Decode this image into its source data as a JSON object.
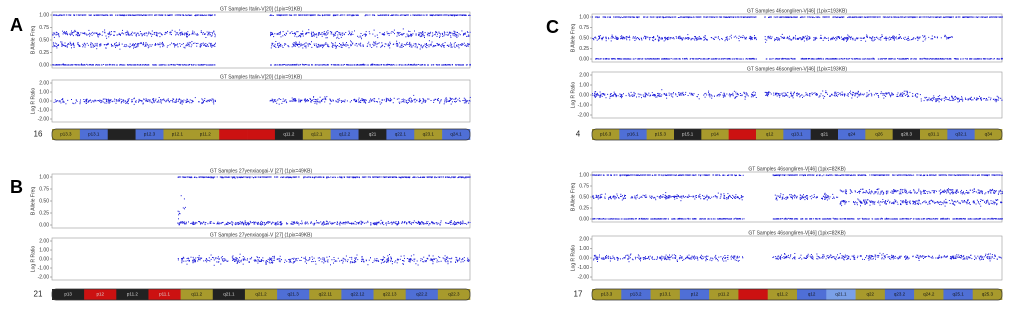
{
  "panels": [
    {
      "label": "A",
      "chromosome": "16",
      "plots": [
        {
          "title": "GT Samples Italin-V[20] (1pix=91KB)",
          "ylabel": "B Allele Freq",
          "ylim": [
            0,
            1
          ],
          "yticks": [
            {
              "value": 1,
              "label": "1.00"
            },
            {
              "value": 0.75,
              "label": "0.75"
            },
            {
              "value": 0.5,
              "label": "0.50"
            },
            {
              "value": 0.25,
              "label": "0.25"
            },
            {
              "value": 0,
              "label": "0.00"
            }
          ],
          "segments": [
            {
              "x": [
                0,
                0.39
              ],
              "y": 1,
              "sd": 0.006
            },
            {
              "x": [
                0,
                0.39
              ],
              "y": 0,
              "sd": 0.006
            },
            {
              "x": [
                0,
                0.39
              ],
              "y": 0.62,
              "sd": 0.03
            },
            {
              "x": [
                0,
                0.39
              ],
              "y": 0.4,
              "sd": 0.03
            },
            {
              "x": [
                0.52,
                1
              ],
              "y": 1,
              "sd": 0.006
            },
            {
              "x": [
                0.52,
                1
              ],
              "y": 0,
              "sd": 0.006
            },
            {
              "x": [
                0.52,
                1
              ],
              "y": 0.62,
              "sd": 0.03
            },
            {
              "x": [
                0.52,
                1
              ],
              "y": 0.4,
              "sd": 0.03
            }
          ]
        },
        {
          "title": "GT Samples Italin-V[20] (1pix=91KB)",
          "ylabel": "Log R Ratio",
          "ylim": [
            -2,
            2
          ],
          "yticks": [
            {
              "value": 2,
              "label": "2.00"
            },
            {
              "value": 1,
              "label": "1.00"
            },
            {
              "value": 0,
              "label": "0.00"
            },
            {
              "value": -1,
              "label": "-1.00"
            },
            {
              "value": -2,
              "label": "-2.00"
            }
          ],
          "segments": [
            {
              "x": [
                0,
                0.39
              ],
              "y": 0,
              "sd": 0.15
            },
            {
              "x": [
                0.52,
                1
              ],
              "y": 0.05,
              "sd": 0.15
            }
          ]
        }
      ],
      "bands": [
        {
          "label": "p13.3",
          "color": "#a89a2c"
        },
        {
          "label": "p13.1",
          "color": "#4f6fd6"
        },
        {
          "label": null,
          "color": "#222222"
        },
        {
          "label": "p12.3",
          "color": "#4f6fd6"
        },
        {
          "label": "p12.1",
          "color": "#a89a2c"
        },
        {
          "label": "p11.2",
          "color": "#a89a2c"
        },
        {
          "label": null,
          "color": "#cc1111"
        },
        {
          "label": null,
          "color": "#cc1111"
        },
        {
          "label": "q11.2",
          "color": "#222222"
        },
        {
          "label": "q12.1",
          "color": "#a89a2c"
        },
        {
          "label": "q12.2",
          "color": "#4f6fd6"
        },
        {
          "label": "q21",
          "color": "#222222"
        },
        {
          "label": "q22.1",
          "color": "#4f6fd6"
        },
        {
          "label": "q23.1",
          "color": "#a89a2c"
        },
        {
          "label": "q24.1",
          "color": "#4f6fd6"
        }
      ]
    },
    {
      "label": "B",
      "chromosome": "21",
      "plots": [
        {
          "title": "GT Samples 27yenxiaogai-V [27] (1pix=49KB)",
          "ylabel": "B Allele Freq",
          "ylim": [
            0,
            1
          ],
          "yticks": [
            {
              "value": 1,
              "label": "1.00"
            },
            {
              "value": 0.75,
              "label": "0.75"
            },
            {
              "value": 0.5,
              "label": "0.50"
            },
            {
              "value": 0.25,
              "label": "0.25"
            },
            {
              "value": 0,
              "label": "0.00"
            }
          ],
          "segments": [
            {
              "x": [
                0.3,
                1
              ],
              "y": 1,
              "sd": 0.008
            },
            {
              "x": [
                0.3,
                1
              ],
              "y": 0.04,
              "sd": 0.02
            },
            {
              "x": [
                0.3,
                0.32
              ],
              "y": 0.3,
              "sd": 0.12
            }
          ]
        },
        {
          "title": "GT Samples 27yenxiaogai-V [27] (1pix=49KB)",
          "ylabel": "Log R Ratio",
          "ylim": [
            -2,
            2
          ],
          "yticks": [
            {
              "value": 2,
              "label": "2.00"
            },
            {
              "value": 1,
              "label": "1.00"
            },
            {
              "value": 0,
              "label": "0.00"
            },
            {
              "value": -1,
              "label": "-1.00"
            },
            {
              "value": -2,
              "label": "-2.00"
            }
          ],
          "segments": [
            {
              "x": [
                0.3,
                1
              ],
              "y": -0.1,
              "sd": 0.2
            }
          ]
        }
      ],
      "bands": [
        {
          "label": "p13",
          "color": "#222222"
        },
        {
          "label": "p12",
          "color": "#cc1111"
        },
        {
          "label": "p11.2",
          "color": "#222222"
        },
        {
          "label": "p11.1",
          "color": "#cc1111"
        },
        {
          "label": "q11.2",
          "color": "#a89a2c"
        },
        {
          "label": "q21.1",
          "color": "#222222"
        },
        {
          "label": "q21.2",
          "color": "#a89a2c"
        },
        {
          "label": "q21.3",
          "color": "#4f6fd6"
        },
        {
          "label": "q22.11",
          "color": "#a89a2c"
        },
        {
          "label": "q22.12",
          "color": "#4f6fd6"
        },
        {
          "label": "q22.13",
          "color": "#a89a2c"
        },
        {
          "label": "q22.2",
          "color": "#4f6fd6"
        },
        {
          "label": "q22.3",
          "color": "#a89a2c"
        }
      ]
    },
    {
      "label": "C",
      "chromosome": "4",
      "plots": [
        {
          "title": "GT Samples 46songliren-V[46] (1pix=193KB)",
          "ylabel": "B Allele Freq",
          "ylim": [
            0,
            1
          ],
          "yticks": [
            {
              "value": 1,
              "label": "1.00"
            },
            {
              "value": 0.75,
              "label": "0.75"
            },
            {
              "value": 0.5,
              "label": "0.50"
            },
            {
              "value": 0.25,
              "label": "0.25"
            },
            {
              "value": 0,
              "label": "0.00"
            }
          ],
          "segments": [
            {
              "x": [
                0,
                0.4
              ],
              "y": 1,
              "sd": 0.006
            },
            {
              "x": [
                0,
                0.4
              ],
              "y": 0,
              "sd": 0.006
            },
            {
              "x": [
                0,
                0.4
              ],
              "y": 0.5,
              "sd": 0.03
            },
            {
              "x": [
                0.42,
                0.88
              ],
              "y": 1,
              "sd": 0.006
            },
            {
              "x": [
                0.42,
                0.88
              ],
              "y": 0,
              "sd": 0.006
            },
            {
              "x": [
                0.42,
                0.88
              ],
              "y": 0.5,
              "sd": 0.03
            },
            {
              "x": [
                0.88,
                1
              ],
              "y": 1,
              "sd": 0.006
            },
            {
              "x": [
                0.88,
                1
              ],
              "y": 0,
              "sd": 0.006
            }
          ]
        },
        {
          "title": "GT Samples 46songliren-V[46] (1pix=193KB)",
          "ylabel": "Log R Ratio",
          "ylim": [
            -2,
            2
          ],
          "yticks": [
            {
              "value": 2,
              "label": "2.00"
            },
            {
              "value": 1,
              "label": "1.00"
            },
            {
              "value": 0,
              "label": "0.00"
            },
            {
              "value": -1,
              "label": "-1.00"
            },
            {
              "value": -2,
              "label": "-2.00"
            }
          ],
          "segments": [
            {
              "x": [
                0,
                0.4
              ],
              "y": 0,
              "sd": 0.15
            },
            {
              "x": [
                0.42,
                0.8
              ],
              "y": 0.05,
              "sd": 0.15
            },
            {
              "x": [
                0.8,
                1
              ],
              "y": -0.4,
              "sd": 0.15
            }
          ]
        }
      ],
      "bands": [
        {
          "label": "p16.3",
          "color": "#a89a2c"
        },
        {
          "label": "p16.1",
          "color": "#4f6fd6"
        },
        {
          "label": "p15.3",
          "color": "#a89a2c"
        },
        {
          "label": "p15.1",
          "color": "#222222"
        },
        {
          "label": "p14",
          "color": "#a89a2c"
        },
        {
          "label": null,
          "color": "#cc1111"
        },
        {
          "label": "q12",
          "color": "#a89a2c"
        },
        {
          "label": "q13.1",
          "color": "#4f6fd6"
        },
        {
          "label": "q21",
          "color": "#222222"
        },
        {
          "label": "q24",
          "color": "#4f6fd6"
        },
        {
          "label": "q26",
          "color": "#a89a2c"
        },
        {
          "label": "q28.3",
          "color": "#222222"
        },
        {
          "label": "q31.1",
          "color": "#a89a2c"
        },
        {
          "label": "q32.1",
          "color": "#4f6fd6"
        },
        {
          "label": "q34",
          "color": "#a89a2c"
        }
      ]
    },
    {
      "chromosome": "17",
      "plots": [
        {
          "title": "GT Samples 46songliren-V[46] (1pix=82KB)",
          "ylabel": "B Allele Freq",
          "ylim": [
            0,
            1
          ],
          "yticks": [
            {
              "value": 1,
              "label": "1.00"
            },
            {
              "value": 0.75,
              "label": "0.75"
            },
            {
              "value": 0.5,
              "label": "0.50"
            },
            {
              "value": 0.25,
              "label": "0.25"
            },
            {
              "value": 0,
              "label": "0.00"
            }
          ],
          "segments": [
            {
              "x": [
                0,
                0.37
              ],
              "y": 1,
              "sd": 0.006
            },
            {
              "x": [
                0,
                0.37
              ],
              "y": 0,
              "sd": 0.006
            },
            {
              "x": [
                0,
                0.37
              ],
              "y": 0.5,
              "sd": 0.03
            },
            {
              "x": [
                0.44,
                1
              ],
              "y": 1,
              "sd": 0.006
            },
            {
              "x": [
                0.44,
                1
              ],
              "y": 0,
              "sd": 0.006
            },
            {
              "x": [
                0.44,
                0.6
              ],
              "y": 0.5,
              "sd": 0.03
            },
            {
              "x": [
                0.6,
                1
              ],
              "y": 0.62,
              "sd": 0.03
            },
            {
              "x": [
                0.6,
                1
              ],
              "y": 0.38,
              "sd": 0.03
            }
          ]
        },
        {
          "title": "GT Samples 46songliren-V[46] (1pix=82KB)",
          "ylabel": "Log R Ratio",
          "ylim": [
            -2,
            2
          ],
          "yticks": [
            {
              "value": 2,
              "label": "2.00"
            },
            {
              "value": 1,
              "label": "1.00"
            },
            {
              "value": 0,
              "label": "0.00"
            },
            {
              "value": -1,
              "label": "-1.00"
            },
            {
              "value": -2,
              "label": "-2.00"
            }
          ],
          "segments": [
            {
              "x": [
                0,
                0.37
              ],
              "y": 0,
              "sd": 0.15
            },
            {
              "x": [
                0.44,
                1
              ],
              "y": 0.1,
              "sd": 0.15
            }
          ]
        }
      ],
      "bands": [
        {
          "label": "p13.3",
          "color": "#a89a2c"
        },
        {
          "label": "p13.2",
          "color": "#4f6fd6"
        },
        {
          "label": "p13.1",
          "color": "#a89a2c"
        },
        {
          "label": "p12",
          "color": "#4f6fd6"
        },
        {
          "label": "p11.2",
          "color": "#a89a2c"
        },
        {
          "label": null,
          "color": "#cc1111"
        },
        {
          "label": "q11.2",
          "color": "#a89a2c"
        },
        {
          "label": "q12",
          "color": "#4f6fd6"
        },
        {
          "label": "q21.1",
          "color": "#7aa0e8"
        },
        {
          "label": "q22",
          "color": "#a89a2c"
        },
        {
          "label": "q23.2",
          "color": "#4f6fd6"
        },
        {
          "label": "q24.2",
          "color": "#a89a2c"
        },
        {
          "label": "q25.1",
          "color": "#4f6fd6"
        },
        {
          "label": "q25.3",
          "color": "#a89a2c"
        }
      ]
    }
  ]
}
